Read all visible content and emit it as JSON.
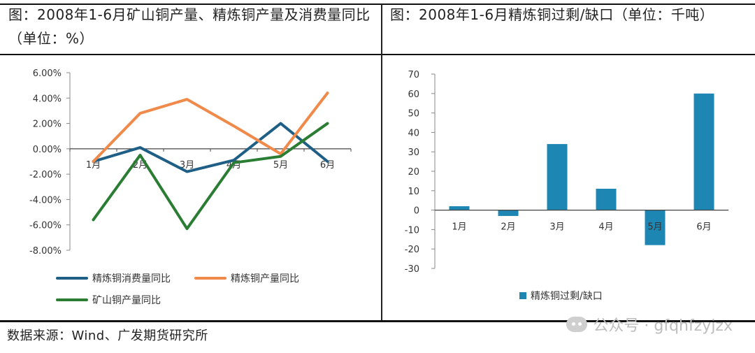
{
  "left_panel": {
    "title": "图：2008年1-6月矿山铜产量、精炼铜产量及消费量同比（单位：%）"
  },
  "right_panel": {
    "title": "图：2008年1-6月精炼铜过剩/缺口（单位：千吨）"
  },
  "source_note": "数据来源：Wind、广发期货研究所",
  "watermark": "公众号 · gfqhfzyjzx",
  "colors": {
    "consumption": "#1f5f86",
    "refined_output": "#f08a4b",
    "mine_output": "#2a7d33",
    "bar": "#1d86b3"
  },
  "chart_data": [
    {
      "type": "line",
      "categories": [
        "1月",
        "2月",
        "3月",
        "4月",
        "5月",
        "6月"
      ],
      "series": [
        {
          "name": "精炼铜消费量同比",
          "values": [
            -1.0,
            0.1,
            -1.8,
            -0.9,
            2.0,
            -1.0
          ]
        },
        {
          "name": "精炼铜产量同比",
          "values": [
            -1.0,
            2.8,
            3.9,
            1.8,
            -0.4,
            4.4
          ]
        },
        {
          "name": "矿山铜产量同比",
          "values": [
            -5.6,
            -0.5,
            -6.3,
            -1.1,
            -0.6,
            2.0
          ]
        }
      ],
      "ylim": [
        -8,
        6
      ],
      "yticks": [
        -8,
        -6,
        -4,
        -2,
        0,
        2,
        4,
        6
      ],
      "ytick_labels": [
        "-8.00%",
        "-6.00%",
        "-4.00%",
        "-2.00%",
        "0.00%",
        "2.00%",
        "4.00%",
        "6.00%"
      ],
      "legend_position": "bottom"
    },
    {
      "type": "bar",
      "categories": [
        "1月",
        "2月",
        "3月",
        "4月",
        "5月",
        "6月"
      ],
      "series": [
        {
          "name": "精炼铜过剩/缺口",
          "values": [
            2,
            -3,
            34,
            11,
            -18,
            60
          ]
        }
      ],
      "ylim": [
        -30,
        70
      ],
      "yticks": [
        -30,
        -20,
        -10,
        0,
        10,
        20,
        30,
        40,
        50,
        60,
        70
      ],
      "ytick_labels": [
        "-30",
        "-20",
        "-10",
        "0",
        "10",
        "20",
        "30",
        "40",
        "50",
        "60",
        "70"
      ],
      "legend_position": "bottom"
    }
  ]
}
